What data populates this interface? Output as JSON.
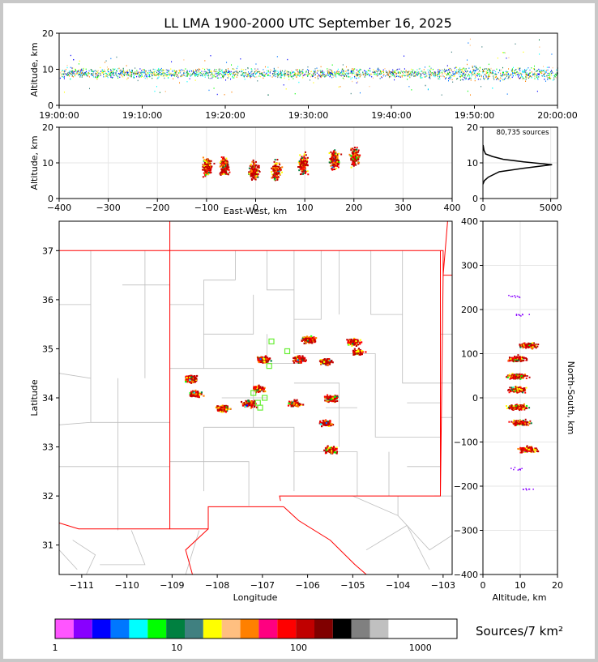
{
  "title": "LL LMA 1900-2000 UTC September 16, 2025",
  "colors": [
    "#ff55ff",
    "#8800ff",
    "#0000ff",
    "#0077ff",
    "#00ffff",
    "#00ff00",
    "#008040",
    "#408080",
    "#ffff00",
    "#ffbf80",
    "#ff8000",
    "#ff0080",
    "#ff0000",
    "#c00000",
    "#800000",
    "#000000",
    "#808080",
    "#c0c0c0",
    "#ffffff"
  ],
  "chart_data": [
    {
      "type": "scatter",
      "panel": "time-altitude",
      "ylabel": "Altitude, km",
      "xlabel": "",
      "ylim": [
        0,
        20
      ],
      "yticks": [
        "0",
        "10",
        "20"
      ],
      "xticks": [
        "19:00:00",
        "19:10:00",
        "19:20:00",
        "19:30:00",
        "19:40:00",
        "19:50:00",
        "20:00:00"
      ],
      "description_values": {
        "core_altitude_km": [
          5,
          13
        ]
      }
    },
    {
      "type": "heatmap",
      "panel": "east-west-altitude",
      "xlabel": "East-West, km",
      "ylabel": "Altitude, km",
      "xlim": [
        -400,
        400
      ],
      "ylim": [
        0,
        20
      ],
      "xticks": [
        "−400",
        "−300",
        "−200",
        "−100",
        "0",
        "100",
        "200",
        "300",
        "400"
      ],
      "yticks": [
        "0",
        "10",
        "20"
      ],
      "clusters": [
        {
          "x": -100,
          "y": 9
        },
        {
          "x": -65,
          "y": 9
        },
        {
          "x": -5,
          "y": 8
        },
        {
          "x": 40,
          "y": 8
        },
        {
          "x": 95,
          "y": 10
        },
        {
          "x": 160,
          "y": 11
        },
        {
          "x": 200,
          "y": 12
        }
      ]
    },
    {
      "type": "line",
      "panel": "altitude-histogram",
      "annotation": "80,735 sources",
      "xlim": [
        0,
        5500
      ],
      "ylim": [
        0,
        20
      ],
      "xticks": [
        "0",
        "5000"
      ],
      "yticks": [
        "0",
        "10",
        "20"
      ],
      "x": [
        0,
        100,
        400,
        1200,
        3000,
        5100,
        3000,
        1500,
        700,
        200,
        80,
        10
      ],
      "y": [
        4,
        5,
        6,
        7.5,
        8.5,
        9.5,
        10.3,
        11,
        11.8,
        12.5,
        13.5,
        15
      ]
    },
    {
      "type": "heatmap",
      "panel": "plan-view",
      "xlabel": "Longitude",
      "ylabel": "Latitude",
      "xlim": [
        -111.5,
        -102.8
      ],
      "ylim": [
        30.4,
        37.6
      ],
      "xticks": [
        "−111",
        "−110",
        "−109",
        "−108",
        "−107",
        "−106",
        "−105",
        "−104",
        "−103"
      ],
      "yticks": [
        "31",
        "32",
        "33",
        "34",
        "35",
        "36",
        "37"
      ],
      "clusters": [
        {
          "lon": -108.5,
          "lat": 34.1
        },
        {
          "lon": -108.6,
          "lat": 34.4
        },
        {
          "lon": -107.9,
          "lat": 33.8
        },
        {
          "lon": -107.1,
          "lat": 34.2
        },
        {
          "lon": -107.3,
          "lat": 33.9
        },
        {
          "lon": -107.0,
          "lat": 34.8
        },
        {
          "lon": -106.3,
          "lat": 33.9
        },
        {
          "lon": -106.2,
          "lat": 34.8
        },
        {
          "lon": -105.5,
          "lat": 34.0
        },
        {
          "lon": -105.6,
          "lat": 33.5
        },
        {
          "lon": -105.5,
          "lat": 32.95
        },
        {
          "lon": -105.0,
          "lat": 35.15
        },
        {
          "lon": -104.9,
          "lat": 34.95
        },
        {
          "lon": -105.6,
          "lat": 34.75
        },
        {
          "lon": -106.0,
          "lat": 35.2
        }
      ]
    },
    {
      "type": "heatmap",
      "panel": "altitude-north-south",
      "xlabel": "Altitude, km",
      "ylabel": "North-South, km",
      "xlim": [
        0,
        20
      ],
      "ylim": [
        -400,
        400
      ],
      "xticks": [
        "0",
        "10",
        "20"
      ],
      "yticks": [
        "−400",
        "−300",
        "−200",
        "−100",
        "0",
        "100",
        "200",
        "300",
        "400"
      ],
      "clusters": [
        {
          "alt": 12,
          "ns": 120
        },
        {
          "alt": 9,
          "ns": 90
        },
        {
          "alt": 9,
          "ns": 50
        },
        {
          "alt": 9,
          "ns": 20
        },
        {
          "alt": 9,
          "ns": -20
        },
        {
          "alt": 10,
          "ns": -55
        },
        {
          "alt": 12,
          "ns": -115
        }
      ]
    }
  ],
  "colorbar": {
    "label": "Sources/7 km²",
    "ticks": [
      "1",
      "10",
      "100",
      "1000"
    ],
    "scale": "log",
    "range": [
      1,
      2000
    ]
  }
}
